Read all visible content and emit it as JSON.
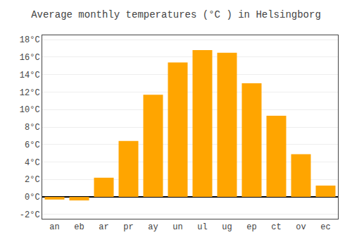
{
  "chart_data": {
    "type": "bar",
    "title": "Average monthly temperatures (°C ) in Helsingborg",
    "categories": [
      "an",
      "eb",
      "ar",
      "pr",
      "ay",
      "un",
      "ul",
      "ug",
      "ep",
      "ct",
      "ov",
      "ec"
    ],
    "values": [
      -0.3,
      -0.4,
      2.2,
      6.4,
      11.7,
      15.4,
      16.8,
      16.5,
      13.0,
      9.3,
      4.9,
      1.3
    ],
    "color": "#FFA500",
    "ylim": [
      -2.5,
      18.5
    ],
    "yticks": [
      {
        "value": -2,
        "label": "-2°C"
      },
      {
        "value": 0,
        "label": "0°C"
      },
      {
        "value": 2,
        "label": "2°C"
      },
      {
        "value": 4,
        "label": "4°C"
      },
      {
        "value": 6,
        "label": "6°C"
      },
      {
        "value": 8,
        "label": "8°C"
      },
      {
        "value": 10,
        "label": "10°C"
      },
      {
        "value": 12,
        "label": "12°C"
      },
      {
        "value": 14,
        "label": "14°C"
      },
      {
        "value": 16,
        "label": "16°C"
      },
      {
        "value": 18,
        "label": "18°C"
      }
    ],
    "grid": true
  }
}
